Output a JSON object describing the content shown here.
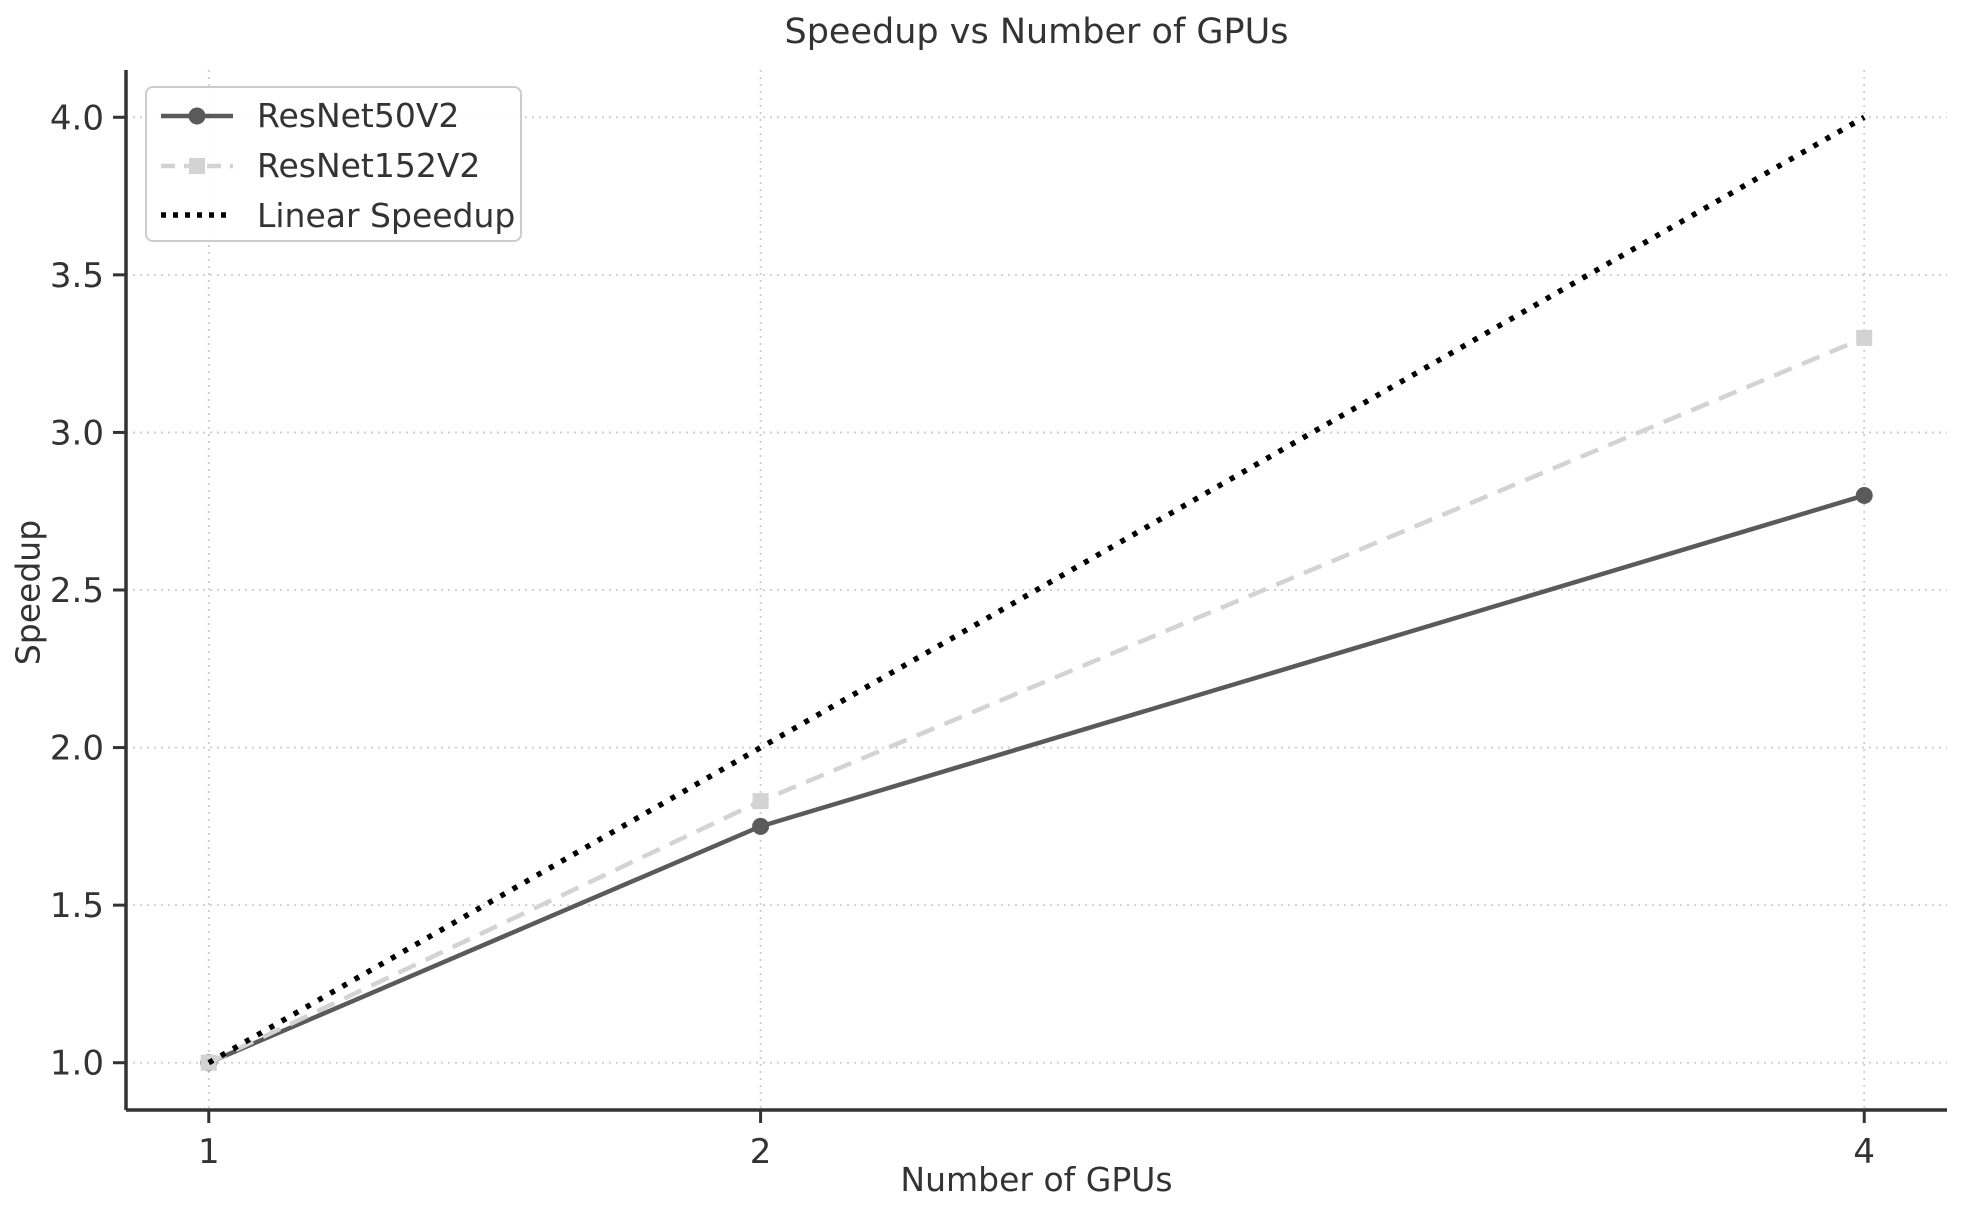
{
  "chart_data": {
    "type": "line",
    "title": "Speedup vs Number of GPUs",
    "xlabel": "Number of GPUs",
    "ylabel": "Speedup",
    "x": [
      1,
      2,
      4
    ],
    "xticks": [
      1,
      2,
      4
    ],
    "xticklabels": [
      "1",
      "2",
      "4"
    ],
    "yticks": [
      1.0,
      1.5,
      2.0,
      2.5,
      3.0,
      3.5,
      4.0
    ],
    "yticklabels": [
      "1.0",
      "1.5",
      "2.0",
      "2.5",
      "3.0",
      "3.5",
      "4.0"
    ],
    "xlim": [
      0.85,
      4.15
    ],
    "ylim": [
      0.85,
      4.15
    ],
    "grid": true,
    "legend_position": "upper-left",
    "series": [
      {
        "name": "ResNet50V2",
        "values": [
          1.0,
          1.75,
          2.8
        ],
        "color": "#5a5a5a",
        "line_style": "solid",
        "marker": "circle"
      },
      {
        "name": "ResNet152V2",
        "values": [
          1.0,
          1.83,
          3.3
        ],
        "color": "#d3d3d3",
        "line_style": "dashed",
        "marker": "square"
      },
      {
        "name": "Linear Speedup",
        "values": [
          1,
          2,
          4
        ],
        "color": "#000000",
        "line_style": "dotted",
        "marker": "none"
      }
    ],
    "colors": {
      "grid": "#cccccc",
      "axis": "#333333",
      "text": "#333333",
      "background": "#ffffff"
    }
  }
}
